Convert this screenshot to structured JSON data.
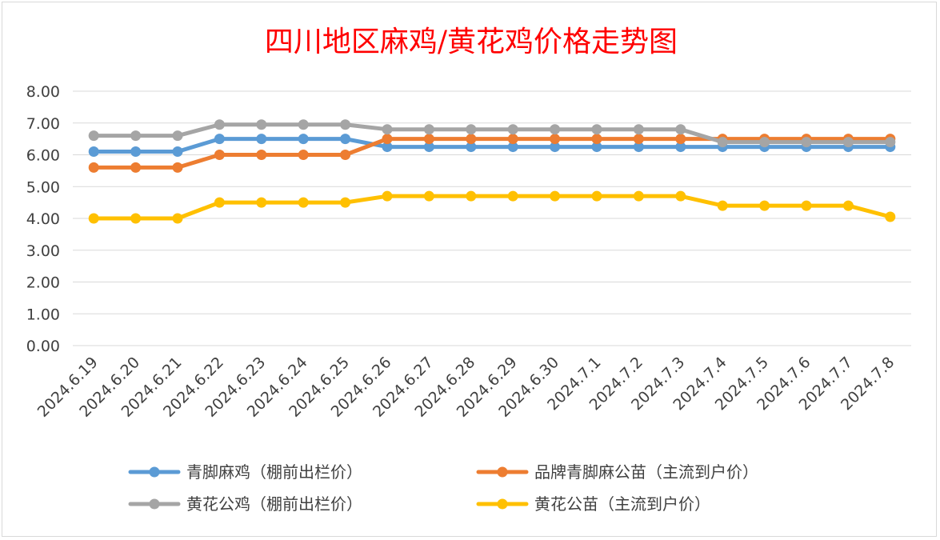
{
  "chart_data": {
    "type": "line",
    "title": "四川地区麻鸡/黄花鸡价格走势图",
    "xlabel": "",
    "ylabel": "",
    "ylim": [
      0,
      8
    ],
    "yticks": [
      "0.00",
      "1.00",
      "2.00",
      "3.00",
      "4.00",
      "5.00",
      "6.00",
      "7.00",
      "8.00"
    ],
    "grid": true,
    "legend_position": "bottom",
    "categories": [
      "2024.6.19",
      "2024.6.20",
      "2024.6.21",
      "2024.6.22",
      "2024.6.23",
      "2024.6.24",
      "2024.6.25",
      "2024.6.26",
      "2024.6.27",
      "2024.6.28",
      "2024.6.29",
      "2024.6.30",
      "2024.7.1",
      "2024.7.2",
      "2024.7.3",
      "2024.7.4",
      "2024.7.5",
      "2024.7.6",
      "2024.7.7",
      "2024.7.8"
    ],
    "series": [
      {
        "name": "青脚麻鸡（棚前出栏价）",
        "color": "#5b9bd5",
        "values": [
          6.1,
          6.1,
          6.1,
          6.5,
          6.5,
          6.5,
          6.5,
          6.25,
          6.25,
          6.25,
          6.25,
          6.25,
          6.25,
          6.25,
          6.25,
          6.25,
          6.25,
          6.25,
          6.25,
          6.25
        ]
      },
      {
        "name": "品牌青脚麻公苗（主流到户价）",
        "color": "#ed7d31",
        "values": [
          5.6,
          5.6,
          5.6,
          6.0,
          6.0,
          6.0,
          6.0,
          6.5,
          6.5,
          6.5,
          6.5,
          6.5,
          6.5,
          6.5,
          6.5,
          6.5,
          6.5,
          6.5,
          6.5,
          6.5
        ]
      },
      {
        "name": "黄花公鸡（棚前出栏价）",
        "color": "#a5a5a5",
        "values": [
          6.6,
          6.6,
          6.6,
          6.95,
          6.95,
          6.95,
          6.95,
          6.8,
          6.8,
          6.8,
          6.8,
          6.8,
          6.8,
          6.8,
          6.8,
          6.4,
          6.4,
          6.4,
          6.4,
          6.4
        ]
      },
      {
        "name": "黄花公苗（主流到户价）",
        "color": "#ffc000",
        "values": [
          4.0,
          4.0,
          4.0,
          4.5,
          4.5,
          4.5,
          4.5,
          4.7,
          4.7,
          4.7,
          4.7,
          4.7,
          4.7,
          4.7,
          4.7,
          4.4,
          4.4,
          4.4,
          4.4,
          4.05
        ]
      }
    ]
  }
}
